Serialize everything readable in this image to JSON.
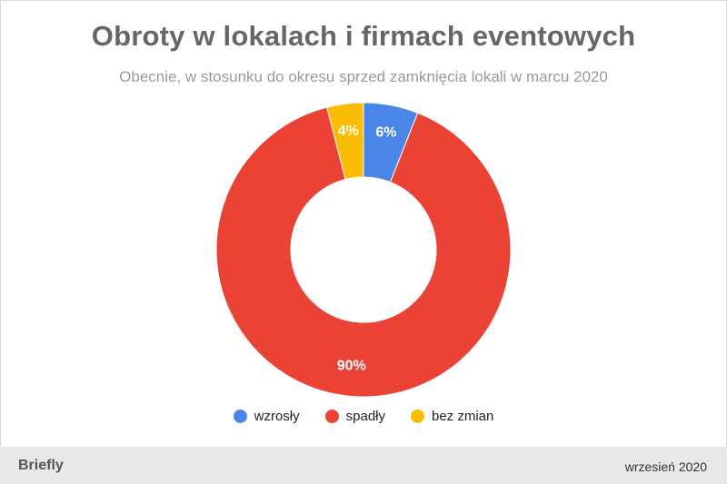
{
  "header": {
    "title": "Obroty w lokalach i firmach eventowych",
    "subtitle": "Obecnie, w stosunku do okresu sprzed zamknięcia lokali w marcu 2020"
  },
  "chart_data": {
    "type": "pie",
    "variant": "donut",
    "title": "Obroty w lokalach i firmach eventowych",
    "subtitle": "Obecnie, w stosunku do okresu sprzed zamknięcia lokali w marcu 2020",
    "categories": [
      "wzrosły",
      "spadły",
      "bez zmian"
    ],
    "values": [
      6,
      90,
      4
    ],
    "labels": [
      "6%",
      "90%",
      "4%"
    ],
    "colors": [
      "#4a86e8",
      "#ea4335",
      "#fbbc04"
    ],
    "legend_position": "bottom",
    "start_angle_deg": 0,
    "direction": "clockwise"
  },
  "footer": {
    "brand": "Briefly",
    "date": "wrzesień 2020"
  }
}
